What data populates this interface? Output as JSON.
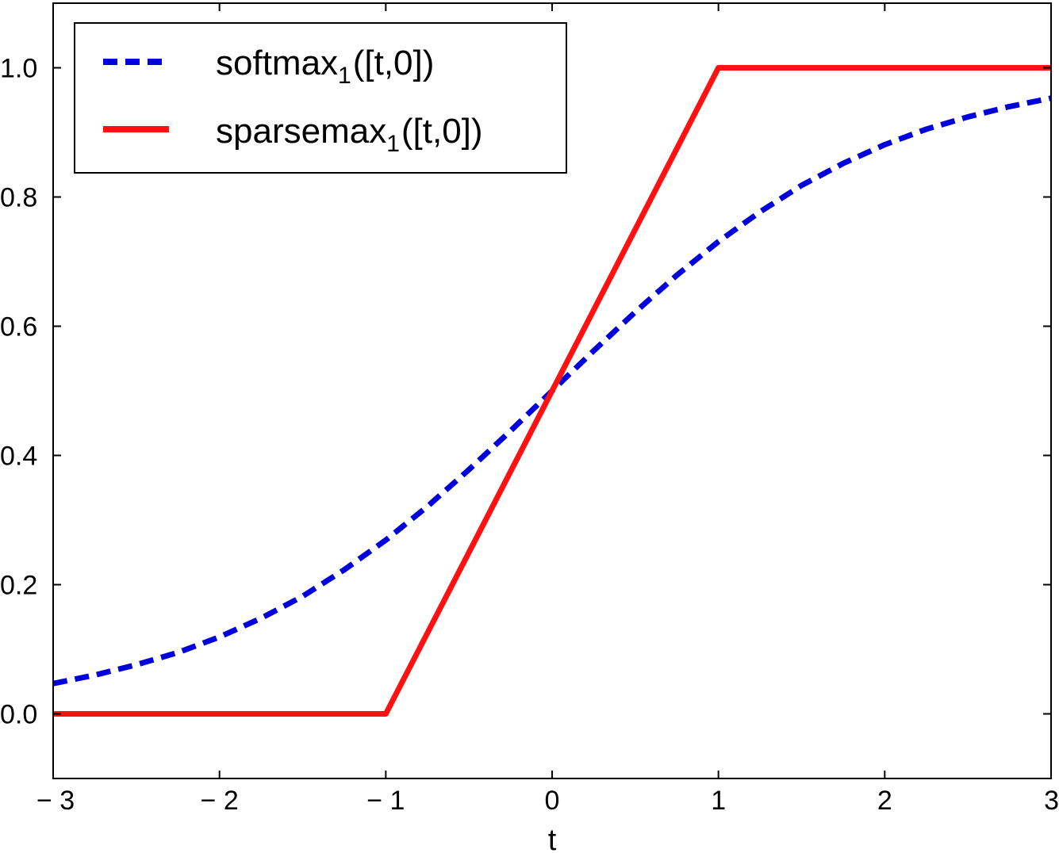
{
  "chart_data": {
    "type": "line",
    "title": "",
    "xlabel": "t",
    "ylabel": "",
    "xlim": [
      -3,
      3
    ],
    "ylim": [
      -0.1,
      1.1
    ],
    "xticks": [
      -3,
      -2,
      -1,
      0,
      1,
      2,
      3
    ],
    "xtick_labels": [
      "− 3",
      "− 2",
      "− 1",
      "0",
      "1",
      "2",
      "3"
    ],
    "yticks": [
      0.0,
      0.2,
      0.4,
      0.6,
      0.8,
      1.0
    ],
    "ytick_labels": [
      "0.0",
      "0.2",
      "0.4",
      "0.6",
      "0.8",
      "1.0"
    ],
    "grid": false,
    "legend_position": "top-left",
    "series": [
      {
        "name": "softmax_1([t,0])",
        "label_main": "softmax",
        "label_sub": "1",
        "label_tail": "([t,0])",
        "color": "#0000dd",
        "style": "dashed",
        "x": [
          -3,
          -2.75,
          -2.5,
          -2.25,
          -2,
          -1.75,
          -1.5,
          -1.25,
          -1,
          -0.75,
          -0.5,
          -0.25,
          0,
          0.25,
          0.5,
          0.75,
          1,
          1.25,
          1.5,
          1.75,
          2,
          2.25,
          2.5,
          2.75,
          3
        ],
        "y": [
          0.047,
          0.06,
          0.076,
          0.095,
          0.119,
          0.148,
          0.182,
          0.223,
          0.269,
          0.321,
          0.378,
          0.438,
          0.5,
          0.562,
          0.622,
          0.679,
          0.731,
          0.777,
          0.818,
          0.852,
          0.881,
          0.905,
          0.924,
          0.94,
          0.953
        ]
      },
      {
        "name": "sparsemax_1([t,0])",
        "label_main": "sparsemax",
        "label_sub": "1",
        "label_tail": "([t,0])",
        "color": "#ff1111",
        "style": "solid",
        "x": [
          -3,
          -1,
          1,
          3
        ],
        "y": [
          0.0,
          0.0,
          1.0,
          1.0
        ]
      }
    ]
  }
}
